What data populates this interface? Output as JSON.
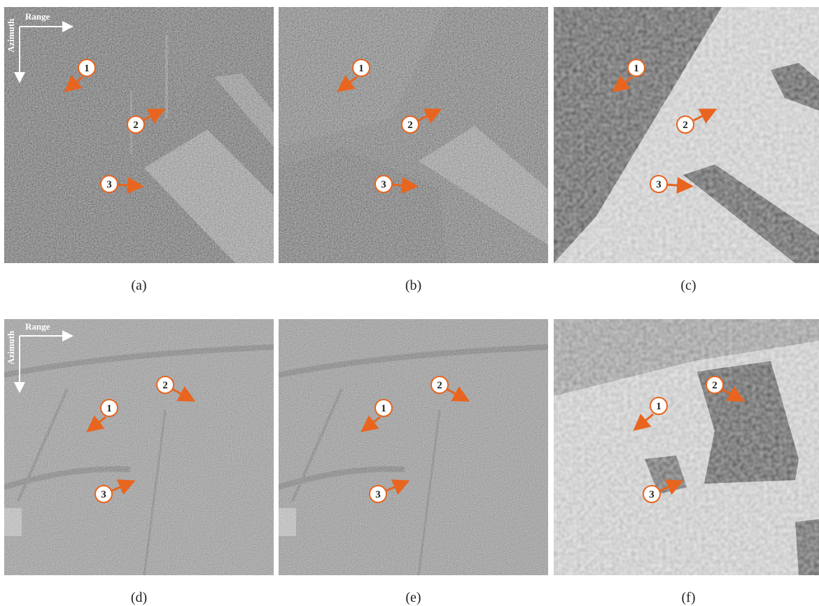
{
  "panels": [
    {
      "id": "a",
      "caption": "(a)",
      "axes": {
        "range": "Range",
        "azimuth": "Azimuth"
      },
      "markers": [
        "1",
        "2",
        "3"
      ]
    },
    {
      "id": "b",
      "caption": "(b)",
      "markers": [
        "1",
        "2",
        "3"
      ]
    },
    {
      "id": "c",
      "caption": "(c)",
      "markers": [
        "1",
        "2",
        "3"
      ]
    },
    {
      "id": "d",
      "caption": "(d)",
      "axes": {
        "range": "Range",
        "azimuth": "Azimuth"
      },
      "markers": [
        "1",
        "2",
        "3"
      ]
    },
    {
      "id": "e",
      "caption": "(e)",
      "markers": [
        "1",
        "2",
        "3"
      ]
    },
    {
      "id": "f",
      "caption": "(f)",
      "markers": [
        "1",
        "2",
        "3"
      ]
    }
  ],
  "colors": {
    "arrow": "#e8651f",
    "marker_border": "#e8651f",
    "axis": "#ffffff"
  }
}
